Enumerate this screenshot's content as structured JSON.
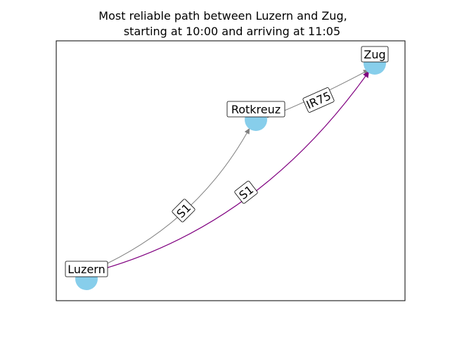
{
  "title": {
    "line1": "Most reliable path between Luzern and Zug,",
    "line2": "starting at 10:00 and arriving at 11:05"
  },
  "colors": {
    "node_fill": "#87ceeb",
    "edge_default": "#808080",
    "edge_highlight": "#800080",
    "axes_frame": "#000000"
  },
  "nodes": [
    {
      "id": "luzern",
      "label": "Luzern"
    },
    {
      "id": "rotkreuz",
      "label": "Rotkreuz"
    },
    {
      "id": "zug",
      "label": "Zug"
    }
  ],
  "edges": [
    {
      "id": "luzern-rotkreuz",
      "source": "luzern",
      "target": "rotkreuz",
      "label": "S1",
      "highlighted": false
    },
    {
      "id": "rotkreuz-zug",
      "source": "rotkreuz",
      "target": "zug",
      "label": "IR75",
      "highlighted": false
    },
    {
      "id": "luzern-zug",
      "source": "luzern",
      "target": "zug",
      "label": "S1",
      "highlighted": true
    }
  ]
}
